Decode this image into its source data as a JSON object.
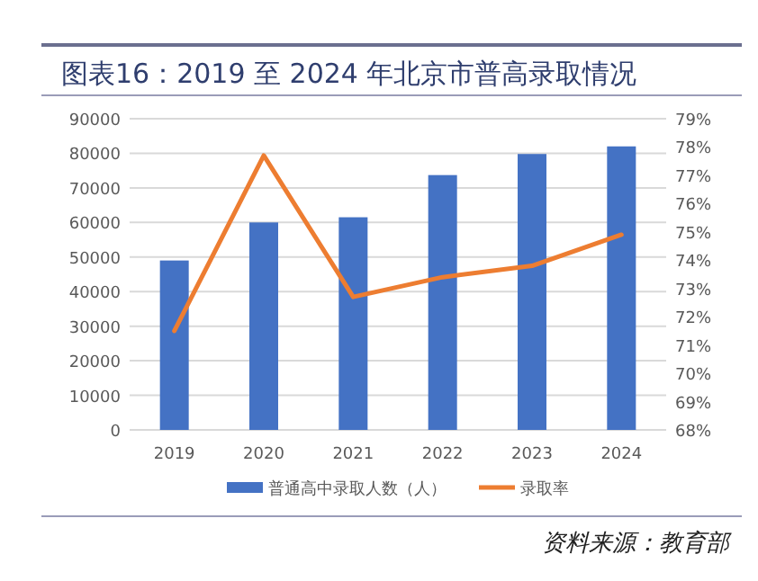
{
  "chart_data": {
    "type": "bar",
    "title": "图表16：2019 至 2024 年北京市普高录取情况",
    "categories": [
      "2019",
      "2020",
      "2021",
      "2022",
      "2023",
      "2024"
    ],
    "series": [
      {
        "name": "普通高中录取人数（人）",
        "color": "#4472c4",
        "values": [
          49000,
          60000,
          61500,
          73700,
          79800,
          82000
        ]
      },
      {
        "name": "录取率",
        "type": "line",
        "axis": "y2",
        "color": "#ed7d31",
        "values": [
          71.5,
          77.7,
          72.7,
          73.4,
          73.8,
          74.9
        ]
      }
    ],
    "ylim": [
      0,
      90000
    ],
    "yticks": [
      0,
      10000,
      20000,
      30000,
      40000,
      50000,
      60000,
      70000,
      80000,
      90000
    ],
    "y2lim": [
      68,
      79
    ],
    "y2ticks": [
      {
        "value": 68,
        "label": "68%"
      },
      {
        "value": 69,
        "label": "69%"
      },
      {
        "value": 70,
        "label": "70%"
      },
      {
        "value": 71,
        "label": "71%"
      },
      {
        "value": 72,
        "label": "72%"
      },
      {
        "value": 73,
        "label": "73%"
      },
      {
        "value": 74,
        "label": "74%"
      },
      {
        "value": 75,
        "label": "75%"
      },
      {
        "value": 76,
        "label": "76%"
      },
      {
        "value": 77,
        "label": "77%"
      },
      {
        "value": 78,
        "label": "78%"
      },
      {
        "value": 79,
        "label": "79%"
      }
    ],
    "grid": "y",
    "legend": "bottom",
    "marker": "none",
    "line_style": "solid",
    "annotations": [
      "资料来源：教育部"
    ]
  }
}
